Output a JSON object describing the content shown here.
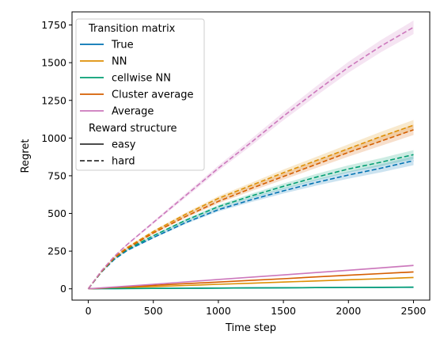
{
  "chart_data": {
    "type": "line",
    "xlabel": "Time step",
    "ylabel": "Regret",
    "xlim": [
      -125,
      2625
    ],
    "ylim": [
      -75,
      1837
    ],
    "xticks": [
      0,
      500,
      1000,
      1500,
      2000,
      2500
    ],
    "yticks": [
      0,
      250,
      500,
      750,
      1000,
      1250,
      1500,
      1750
    ],
    "x": [
      0,
      100,
      200,
      300,
      500,
      750,
      1000,
      1250,
      1500,
      1750,
      2000,
      2250,
      2500
    ],
    "legend": {
      "location": "upper left",
      "color_title": "Transition matrix",
      "style_title": "Reward structure",
      "style_entries": [
        {
          "label": "easy",
          "dash": "solid"
        },
        {
          "label": "hard",
          "dash": "dashed"
        }
      ]
    },
    "series": [
      {
        "name": "True",
        "reward": "easy",
        "color": "#0173b2",
        "dash": "solid",
        "values": [
          0,
          1,
          1,
          2,
          3,
          4,
          5,
          6,
          7,
          8,
          9,
          9,
          10
        ],
        "band": 2
      },
      {
        "name": "NN",
        "reward": "easy",
        "color": "#de8f05",
        "dash": "solid",
        "values": [
          0,
          3,
          6,
          9,
          15,
          22,
          30,
          37,
          45,
          52,
          60,
          67,
          75
        ],
        "band": 5
      },
      {
        "name": "cellwise NN",
        "reward": "easy",
        "color": "#029e73",
        "dash": "solid",
        "values": [
          0,
          1,
          1,
          2,
          3,
          4,
          5,
          6,
          7,
          8,
          9,
          10,
          11
        ],
        "band": 2
      },
      {
        "name": "Cluster average",
        "reward": "easy",
        "color": "#d55e00",
        "dash": "solid",
        "values": [
          0,
          4,
          9,
          14,
          23,
          34,
          45,
          56,
          67,
          79,
          90,
          101,
          112
        ],
        "band": 5
      },
      {
        "name": "Average",
        "reward": "easy",
        "color": "#cc78bc",
        "dash": "solid",
        "values": [
          0,
          6,
          12,
          18,
          30,
          46,
          62,
          77,
          92,
          108,
          123,
          139,
          155
        ],
        "band": 6
      },
      {
        "name": "True",
        "reward": "hard",
        "color": "#0173b2",
        "dash": "dashed",
        "values": [
          0,
          110,
          195,
          255,
          340,
          440,
          525,
          590,
          650,
          705,
          755,
          800,
          850
        ],
        "band": 30
      },
      {
        "name": "NN",
        "reward": "hard",
        "color": "#de8f05",
        "dash": "dashed",
        "values": [
          0,
          115,
          210,
          275,
          380,
          495,
          600,
          685,
          770,
          850,
          930,
          1010,
          1085
        ],
        "band": 35
      },
      {
        "name": "cellwise NN",
        "reward": "hard",
        "color": "#029e73",
        "dash": "dashed",
        "values": [
          0,
          112,
          200,
          262,
          352,
          455,
          545,
          615,
          680,
          740,
          795,
          840,
          890
        ],
        "band": 30
      },
      {
        "name": "Cluster average",
        "reward": "hard",
        "color": "#d55e00",
        "dash": "dashed",
        "values": [
          0,
          113,
          205,
          268,
          370,
          480,
          580,
          665,
          745,
          825,
          905,
          980,
          1055
        ],
        "band": 35
      },
      {
        "name": "Average",
        "reward": "hard",
        "color": "#cc78bc",
        "dash": "dashed",
        "values": [
          0,
          118,
          215,
          295,
          440,
          620,
          800,
          970,
          1145,
          1310,
          1470,
          1610,
          1735
        ],
        "band": 45
      }
    ]
  }
}
